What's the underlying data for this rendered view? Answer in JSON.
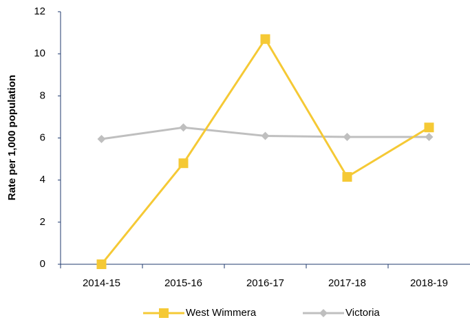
{
  "chart_data": {
    "type": "line",
    "y_label": "Rate per 1,000 population",
    "categories": [
      "2014-15",
      "2015-16",
      "2016-17",
      "2017-18",
      "2018-19"
    ],
    "series": [
      {
        "name": "West Wimmera",
        "color": "#f5c935",
        "marker": "square",
        "values": [
          0,
          4.8,
          10.7,
          4.15,
          6.5
        ]
      },
      {
        "name": "Victoria",
        "color": "#bfbfbf",
        "marker": "diamond",
        "values": [
          5.95,
          6.5,
          6.1,
          6.05,
          6.05
        ]
      }
    ],
    "ylim": [
      0,
      12
    ],
    "yticks": [
      0,
      2,
      4,
      6,
      8,
      10,
      12
    ],
    "grid": false,
    "legend": "bottom"
  }
}
